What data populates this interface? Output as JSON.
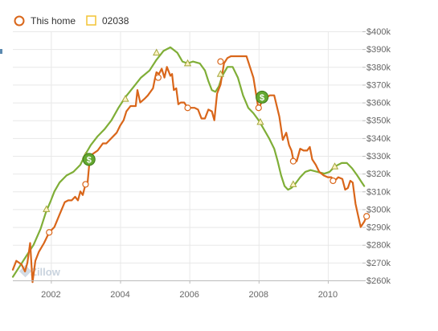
{
  "chart_data": {
    "type": "line",
    "title": "",
    "xlabel": "",
    "ylabel": "",
    "x_ticks": [
      "2002",
      "2004",
      "2006",
      "2008",
      "2010"
    ],
    "y_ticks": [
      "$260k",
      "$270k",
      "$280k",
      "$290k",
      "$300k",
      "$310k",
      "$320k",
      "$330k",
      "$340k",
      "$350k",
      "$360k",
      "$370k",
      "$380k",
      "$390k",
      "$400k"
    ],
    "xlim": [
      2000.9,
      2011.0
    ],
    "ylim": [
      260,
      400
    ],
    "grid": true,
    "legend_position": "top-left",
    "watermark": "Zillow",
    "series": [
      {
        "name": "This home",
        "color": "#d9661a",
        "marker": "circle",
        "points": [
          [
            2000.9,
            266
          ],
          [
            2001.0,
            271
          ],
          [
            2001.15,
            269
          ],
          [
            2001.25,
            265
          ],
          [
            2001.32,
            270
          ],
          [
            2001.4,
            281
          ],
          [
            2001.47,
            259
          ],
          [
            2001.55,
            271
          ],
          [
            2001.65,
            276
          ],
          [
            2001.8,
            281
          ],
          [
            2001.95,
            287
          ],
          [
            2002.1,
            290
          ],
          [
            2002.25,
            297
          ],
          [
            2002.4,
            304
          ],
          [
            2002.5,
            305
          ],
          [
            2002.6,
            305
          ],
          [
            2002.7,
            307
          ],
          [
            2002.78,
            305
          ],
          [
            2002.85,
            310
          ],
          [
            2002.92,
            308
          ],
          [
            2003.0,
            314
          ],
          [
            2003.05,
            313
          ],
          [
            2003.12,
            328
          ],
          [
            2003.2,
            331
          ],
          [
            2003.35,
            333
          ],
          [
            2003.5,
            337
          ],
          [
            2003.6,
            337
          ],
          [
            2003.75,
            340
          ],
          [
            2003.9,
            343
          ],
          [
            2004.0,
            347
          ],
          [
            2004.1,
            350
          ],
          [
            2004.18,
            355
          ],
          [
            2004.3,
            358
          ],
          [
            2004.45,
            358
          ],
          [
            2004.5,
            367
          ],
          [
            2004.58,
            360
          ],
          [
            2004.7,
            362
          ],
          [
            2004.8,
            364
          ],
          [
            2004.95,
            368
          ],
          [
            2005.0,
            373
          ],
          [
            2005.05,
            377
          ],
          [
            2005.12,
            376
          ],
          [
            2005.2,
            379
          ],
          [
            2005.28,
            374
          ],
          [
            2005.35,
            380
          ],
          [
            2005.45,
            375
          ],
          [
            2005.5,
            376
          ],
          [
            2005.55,
            367
          ],
          [
            2005.62,
            368
          ],
          [
            2005.68,
            359
          ],
          [
            2005.75,
            360
          ],
          [
            2005.85,
            360
          ],
          [
            2005.95,
            357
          ],
          [
            2006.0,
            357
          ],
          [
            2006.15,
            357
          ],
          [
            2006.25,
            356
          ],
          [
            2006.35,
            351
          ],
          [
            2006.45,
            351
          ],
          [
            2006.55,
            356
          ],
          [
            2006.65,
            355
          ],
          [
            2006.72,
            350
          ],
          [
            2006.8,
            365
          ],
          [
            2006.9,
            370
          ],
          [
            2007.0,
            382
          ],
          [
            2007.1,
            385
          ],
          [
            2007.2,
            386
          ],
          [
            2007.35,
            386
          ],
          [
            2007.5,
            386
          ],
          [
            2007.65,
            386
          ],
          [
            2007.75,
            380
          ],
          [
            2007.85,
            374
          ],
          [
            2007.95,
            362
          ],
          [
            2008.0,
            356
          ],
          [
            2008.08,
            360
          ],
          [
            2008.15,
            362
          ],
          [
            2008.25,
            363
          ],
          [
            2008.32,
            364
          ],
          [
            2008.45,
            364
          ],
          [
            2008.6,
            352
          ],
          [
            2008.7,
            339
          ],
          [
            2008.8,
            343
          ],
          [
            2008.88,
            336
          ],
          [
            2008.95,
            333
          ],
          [
            2009.0,
            328
          ],
          [
            2009.1,
            327
          ],
          [
            2009.2,
            334
          ],
          [
            2009.3,
            333
          ],
          [
            2009.4,
            333
          ],
          [
            2009.48,
            335
          ],
          [
            2009.55,
            328
          ],
          [
            2009.65,
            325
          ],
          [
            2009.75,
            321
          ],
          [
            2009.88,
            319
          ],
          [
            2010.0,
            318
          ],
          [
            2010.1,
            318
          ],
          [
            2010.2,
            316
          ],
          [
            2010.3,
            318
          ],
          [
            2010.42,
            317
          ],
          [
            2010.5,
            311
          ],
          [
            2010.58,
            312
          ],
          [
            2010.65,
            316
          ],
          [
            2010.72,
            315
          ],
          [
            2010.8,
            303
          ],
          [
            2010.88,
            296
          ],
          [
            2010.95,
            290
          ],
          [
            2011.05,
            293
          ],
          [
            2011.12,
            296
          ]
        ]
      },
      {
        "name": "02038",
        "color": "#7fae37",
        "marker": "triangle",
        "points": [
          [
            2000.9,
            262
          ],
          [
            2001.1,
            268
          ],
          [
            2001.3,
            274
          ],
          [
            2001.5,
            280
          ],
          [
            2001.7,
            289
          ],
          [
            2001.85,
            298
          ],
          [
            2002.0,
            305
          ],
          [
            2002.1,
            310
          ],
          [
            2002.25,
            315
          ],
          [
            2002.45,
            319
          ],
          [
            2002.65,
            321
          ],
          [
            2002.85,
            325
          ],
          [
            2003.0,
            331
          ],
          [
            2003.15,
            336
          ],
          [
            2003.35,
            341
          ],
          [
            2003.55,
            345
          ],
          [
            2003.75,
            350
          ],
          [
            2003.95,
            357
          ],
          [
            2004.15,
            363
          ],
          [
            2004.4,
            369
          ],
          [
            2004.6,
            374
          ],
          [
            2004.85,
            378
          ],
          [
            2005.05,
            384
          ],
          [
            2005.25,
            389
          ],
          [
            2005.45,
            391
          ],
          [
            2005.65,
            388
          ],
          [
            2005.8,
            383
          ],
          [
            2005.95,
            382
          ],
          [
            2006.1,
            383
          ],
          [
            2006.3,
            382
          ],
          [
            2006.45,
            378
          ],
          [
            2006.55,
            372
          ],
          [
            2006.65,
            367
          ],
          [
            2006.75,
            366
          ],
          [
            2006.85,
            369
          ],
          [
            2006.95,
            375
          ],
          [
            2007.1,
            380
          ],
          [
            2007.25,
            380
          ],
          [
            2007.4,
            374
          ],
          [
            2007.55,
            364
          ],
          [
            2007.7,
            357
          ],
          [
            2007.85,
            354
          ],
          [
            2008.0,
            350
          ],
          [
            2008.15,
            345
          ],
          [
            2008.3,
            340
          ],
          [
            2008.45,
            334
          ],
          [
            2008.55,
            327
          ],
          [
            2008.65,
            319
          ],
          [
            2008.75,
            313
          ],
          [
            2008.85,
            311
          ],
          [
            2008.95,
            312
          ],
          [
            2009.05,
            314
          ],
          [
            2009.2,
            318
          ],
          [
            2009.35,
            321
          ],
          [
            2009.5,
            322
          ],
          [
            2009.7,
            321
          ],
          [
            2009.9,
            320
          ],
          [
            2010.05,
            321
          ],
          [
            2010.2,
            324
          ],
          [
            2010.4,
            326
          ],
          [
            2010.55,
            326
          ],
          [
            2010.7,
            323
          ],
          [
            2010.85,
            319
          ],
          [
            2010.95,
            316
          ],
          [
            2011.05,
            313
          ]
        ]
      }
    ],
    "markers": [
      {
        "series": "This home",
        "points": [
          [
            2001.95,
            287
          ],
          [
            2003.0,
            314
          ],
          [
            2005.1,
            374
          ],
          [
            2005.95,
            357
          ],
          [
            2006.9,
            383
          ],
          [
            2008.0,
            357
          ],
          [
            2009.0,
            327
          ],
          [
            2010.15,
            316
          ],
          [
            2011.12,
            296
          ]
        ]
      },
      {
        "series": "02038",
        "points": [
          [
            2001.87,
            300
          ],
          [
            2003.0,
            330
          ],
          [
            2004.15,
            362
          ],
          [
            2005.05,
            388
          ],
          [
            2005.95,
            382
          ],
          [
            2006.9,
            376
          ],
          [
            2008.05,
            349
          ],
          [
            2009.0,
            314
          ],
          [
            2010.2,
            324
          ]
        ]
      }
    ],
    "sale_events": [
      [
        2003.1,
        328
      ],
      [
        2008.1,
        363
      ]
    ]
  }
}
